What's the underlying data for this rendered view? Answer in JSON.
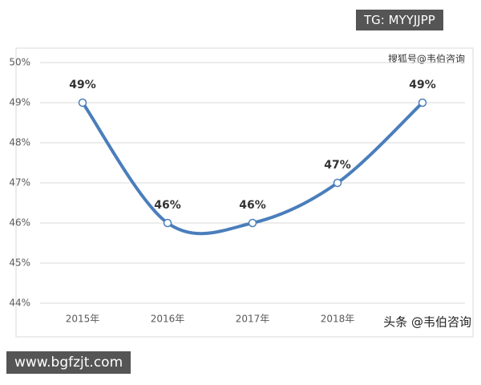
{
  "chart_data": {
    "type": "line",
    "categories": [
      "2015年",
      "2016年",
      "2017年",
      "2018年",
      null
    ],
    "series": [
      {
        "color": "#4a7ebb",
        "values": [
          49,
          46,
          46,
          47,
          49
        ],
        "value_labels": [
          "49%",
          "46%",
          "46%",
          "47%",
          "49%"
        ]
      }
    ],
    "ylim": [
      44,
      50
    ],
    "yticks": [
      {
        "value": 44,
        "label": "44%"
      },
      {
        "value": 45,
        "label": "45%"
      },
      {
        "value": 46,
        "label": "46%"
      },
      {
        "value": 47,
        "label": "47%"
      },
      {
        "value": 48,
        "label": "48%"
      },
      {
        "value": 49,
        "label": "49%"
      },
      {
        "value": 50,
        "label": "50%"
      }
    ],
    "grid": true
  },
  "watermarks": {
    "top_box": "TG: MYYJJPP",
    "sohu": "搜狐号@韦伯咨询",
    "toutiao": "头条 @韦伯咨询",
    "bottom_box": "www.bgfzjt.com"
  }
}
